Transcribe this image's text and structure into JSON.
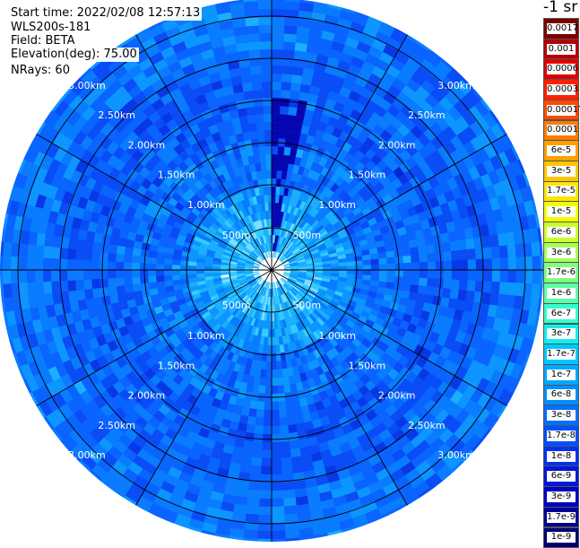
{
  "header": {
    "start_time": "Start time: 2022/02/08 12:57:13",
    "instrument": "WLS200s-181",
    "field": "Field: BETA",
    "elevation": "Elevation(deg): 75.00",
    "nrays": "NRays: 60"
  },
  "colorbar": {
    "unit_label": "-1 sr",
    "ticks": [
      "0.0017",
      "0.001",
      "0.0006",
      "0.0003",
      "0.00017",
      "0.0001",
      "6e-5",
      "3e-5",
      "1.7e-5",
      "1e-5",
      "6e-6",
      "3e-6",
      "1.7e-6",
      "1e-6",
      "6e-7",
      "3e-7",
      "1.7e-7",
      "1e-7",
      "6e-8",
      "3e-8",
      "1.7e-8",
      "1e-8",
      "6e-9",
      "3e-9",
      "1.7e-9",
      "1e-9"
    ],
    "colors": [
      "#7a0000",
      "#b30000",
      "#e00000",
      "#ff2000",
      "#ff4a00",
      "#ff7a00",
      "#ffa000",
      "#ffc400",
      "#ffe400",
      "#f2ff00",
      "#ccff2a",
      "#a6ff55",
      "#80ff80",
      "#5affa6",
      "#33ffcc",
      "#10f0f0",
      "#00c8ff",
      "#00a8ff",
      "#0090ff",
      "#0070ff",
      "#0050ff",
      "#0030f0",
      "#0018d8",
      "#0000c0",
      "#000098",
      "#000070"
    ]
  },
  "range_rings": {
    "labels": [
      "500m",
      "1.00km",
      "1.50km",
      "2.00km",
      "2.50km",
      "3.00km"
    ]
  }
}
